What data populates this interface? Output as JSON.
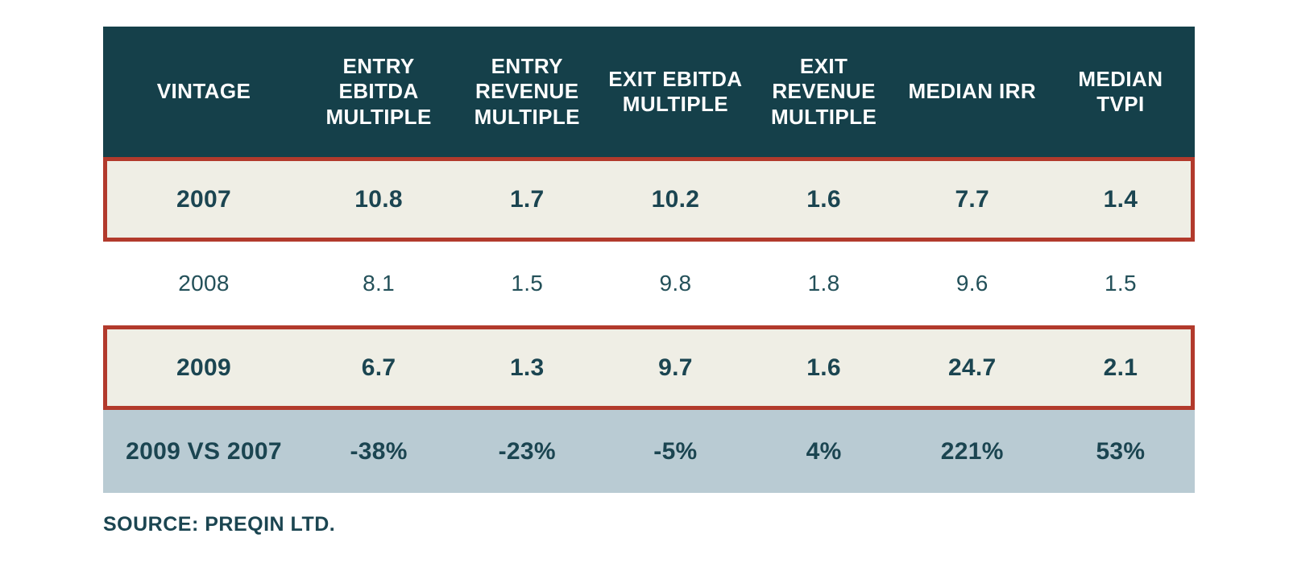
{
  "chart_data": {
    "type": "table",
    "title": "",
    "columns": [
      "VINTAGE",
      "ENTRY EBITDA MULTIPLE",
      "ENTRY REVENUE MULTIPLE",
      "EXIT EBITDA MULTIPLE",
      "EXIT REVENUE MULTIPLE",
      "MEDIAN IRR",
      "MEDIAN TVPI"
    ],
    "rows": [
      {
        "vintage": "2007",
        "values": [
          "10.8",
          "1.7",
          "10.2",
          "1.6",
          "7.7",
          "1.4"
        ],
        "highlighted": true
      },
      {
        "vintage": "2008",
        "values": [
          "8.1",
          "1.5",
          "9.8",
          "1.8",
          "9.6",
          "1.5"
        ],
        "highlighted": false
      },
      {
        "vintage": "2009",
        "values": [
          "6.7",
          "1.3",
          "9.7",
          "1.6",
          "24.7",
          "2.1"
        ],
        "highlighted": true
      },
      {
        "vintage": "2009 VS 2007",
        "values": [
          "-38%",
          "-23%",
          "-5%",
          "4%",
          "221%",
          "53%"
        ],
        "highlighted": false,
        "summary": true
      }
    ],
    "source_note": "SOURCE: PREQIN LTD."
  },
  "colors": {
    "header_bg": "#15404a",
    "header_text": "#ffffff",
    "highlight_row_bg": "#efeee5",
    "highlight_border": "#b23a2c",
    "summary_row_bg": "#b9cbd3",
    "data_text": "#1b4551",
    "plain_row_text": "#235059",
    "page_bg": "#ffffff"
  }
}
